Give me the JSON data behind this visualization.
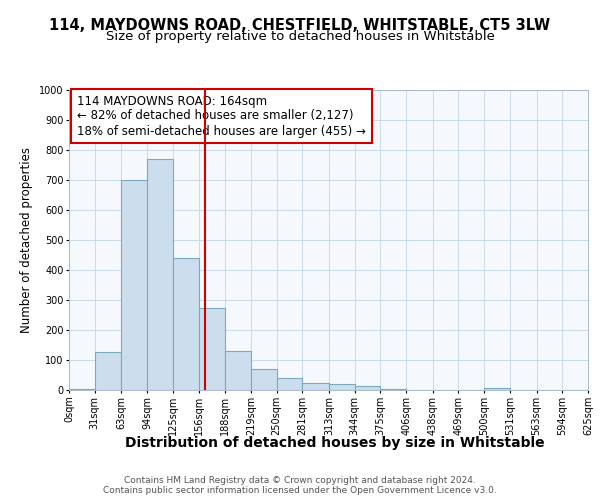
{
  "title1": "114, MAYDOWNS ROAD, CHESTFIELD, WHITSTABLE, CT5 3LW",
  "title2": "Size of property relative to detached houses in Whitstable",
  "xlabel": "Distribution of detached houses by size in Whitstable",
  "ylabel": "Number of detached properties",
  "bin_edges": [
    0,
    31,
    63,
    94,
    125,
    156,
    188,
    219,
    250,
    281,
    313,
    344,
    375,
    406,
    438,
    469,
    500,
    531,
    563,
    594,
    625
  ],
  "bar_heights": [
    5,
    128,
    700,
    770,
    440,
    275,
    130,
    70,
    40,
    25,
    20,
    12,
    5,
    0,
    0,
    0,
    7,
    0,
    0,
    0
  ],
  "bar_color": "#ccdded",
  "bar_edgecolor": "#7aaabb",
  "vline_x": 164,
  "vline_color": "#cc0000",
  "annotation_line1": "114 MAYDOWNS ROAD: 164sqm",
  "annotation_line2": "← 82% of detached houses are smaller (2,127)",
  "annotation_line3": "18% of semi-detached houses are larger (455) →",
  "annotation_box_edgecolor": "#cc0000",
  "annotation_box_facecolor": "white",
  "ylim": [
    0,
    1000
  ],
  "yticks": [
    0,
    100,
    200,
    300,
    400,
    500,
    600,
    700,
    800,
    900,
    1000
  ],
  "footer_text": "Contains HM Land Registry data © Crown copyright and database right 2024.\nContains public sector information licensed under the Open Government Licence v3.0.",
  "bg_color": "#ffffff",
  "plot_bg_color": "#f5f9fd",
  "grid_color": "#c8daea",
  "title1_fontsize": 10.5,
  "title2_fontsize": 9.5,
  "xlabel_fontsize": 10,
  "ylabel_fontsize": 8.5,
  "tick_label_fontsize": 7,
  "footer_fontsize": 6.5,
  "annotation_fontsize": 8.5
}
